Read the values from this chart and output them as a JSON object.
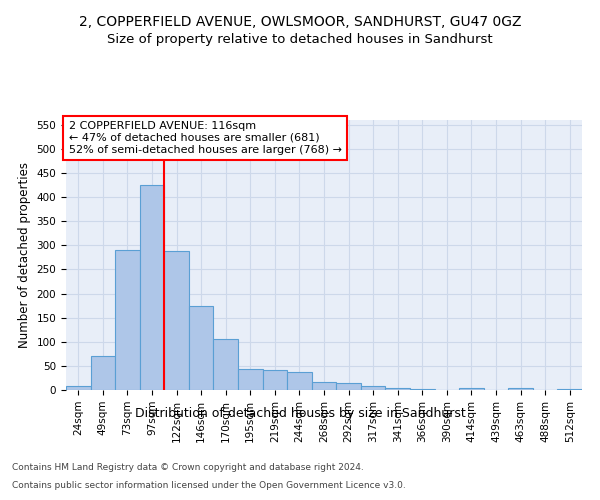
{
  "title1": "2, COPPERFIELD AVENUE, OWLSMOOR, SANDHURST, GU47 0GZ",
  "title2": "Size of property relative to detached houses in Sandhurst",
  "xlabel": "Distribution of detached houses by size in Sandhurst",
  "ylabel": "Number of detached properties",
  "footer1": "Contains HM Land Registry data © Crown copyright and database right 2024.",
  "footer2": "Contains public sector information licensed under the Open Government Licence v3.0.",
  "annotation_line1": "2 COPPERFIELD AVENUE: 116sqm",
  "annotation_line2": "← 47% of detached houses are smaller (681)",
  "annotation_line3": "52% of semi-detached houses are larger (768) →",
  "bar_labels": [
    "24sqm",
    "49sqm",
    "73sqm",
    "97sqm",
    "122sqm",
    "146sqm",
    "170sqm",
    "195sqm",
    "219sqm",
    "244sqm",
    "268sqm",
    "292sqm",
    "317sqm",
    "341sqm",
    "366sqm",
    "390sqm",
    "414sqm",
    "439sqm",
    "463sqm",
    "488sqm",
    "512sqm"
  ],
  "bar_values": [
    8,
    71,
    291,
    425,
    288,
    175,
    105,
    44,
    41,
    38,
    16,
    15,
    8,
    5,
    3,
    0,
    4,
    0,
    4,
    0,
    3
  ],
  "bar_color": "#aec6e8",
  "bar_edgecolor": "#5a9fd4",
  "bar_linewidth": 0.8,
  "red_line_index": 4,
  "ylim": [
    0,
    560
  ],
  "yticks": [
    0,
    50,
    100,
    150,
    200,
    250,
    300,
    350,
    400,
    450,
    500,
    550
  ],
  "grid_color": "#cdd8ea",
  "background_color": "#e8eef8",
  "fig_background": "#ffffff",
  "title1_fontsize": 10,
  "title2_fontsize": 9.5,
  "annotation_fontsize": 8,
  "axis_fontsize": 7.5,
  "xlabel_fontsize": 9,
  "ylabel_fontsize": 8.5
}
